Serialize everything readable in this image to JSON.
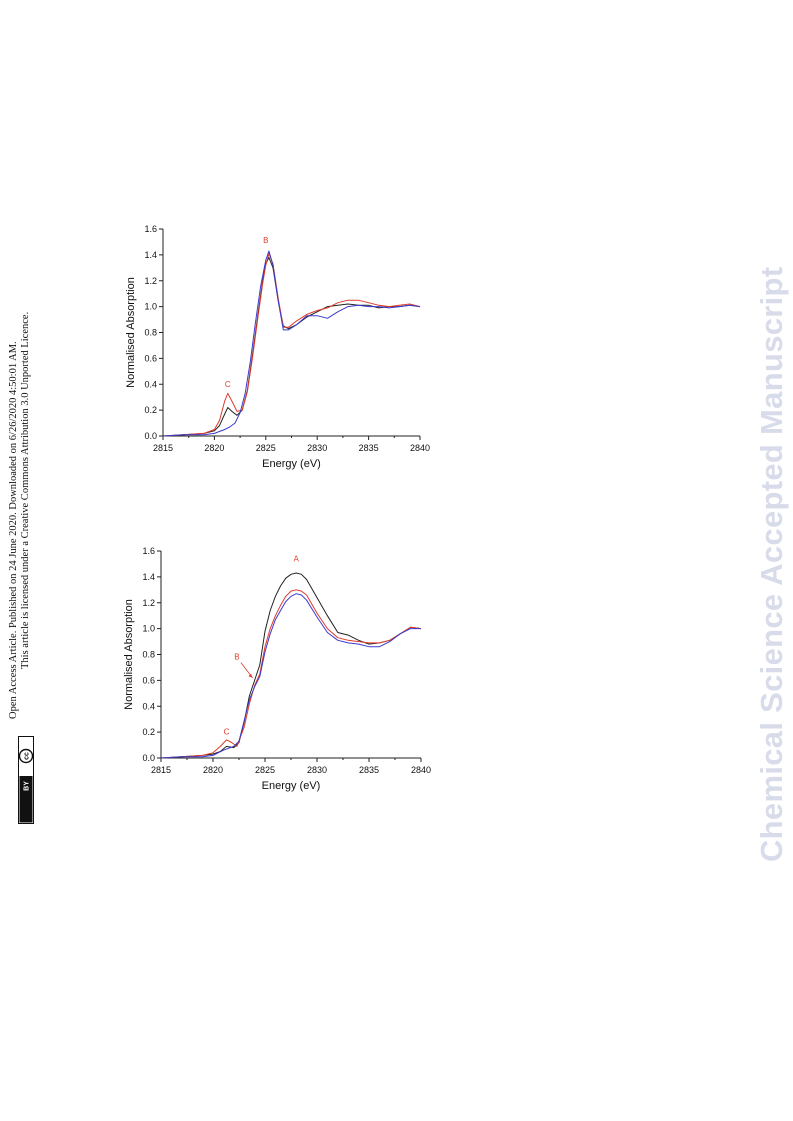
{
  "sidebar": {
    "line1": "Open Access Article. Published on 24 June 2020. Downloaded on 6/26/2020 4:50:01 AM.",
    "line2": "This article is licensed under a Creative Commons Attribution 3.0 Unported Licence.",
    "badge_cc": "cc",
    "badge_by": "BY"
  },
  "watermark": "Chemical Science Accepted Manuscript",
  "colors": {
    "black": "#222222",
    "red": "#e03a2a",
    "blue": "#3a3ad0",
    "label": "#e03a2a"
  },
  "chart_data": [
    {
      "type": "line",
      "title": "",
      "xlabel": "Energy (eV)",
      "ylabel": "Normalised Absorption",
      "xlim": [
        2815,
        2840
      ],
      "ylim": [
        0.0,
        1.6
      ],
      "xticks": [
        "2815",
        "2820",
        "2825",
        "2830",
        "2835",
        "2840"
      ],
      "yticks": [
        "0.0",
        "0.2",
        "0.4",
        "0.6",
        "0.8",
        "1.0",
        "1.2",
        "1.4",
        "1.6"
      ],
      "annotations": [
        {
          "text": "B",
          "x": 2825,
          "y": 1.49
        },
        {
          "text": "C",
          "x": 2821.3,
          "y": 0.38
        }
      ],
      "series": [
        {
          "color": "black",
          "x": [
            2815,
            2817,
            2819,
            2820,
            2820.5,
            2821,
            2821.3,
            2821.7,
            2822.2,
            2822.7,
            2823.2,
            2823.7,
            2824.2,
            2824.7,
            2825.0,
            2825.3,
            2825.7,
            2826.2,
            2826.7,
            2827.2,
            2828,
            2829,
            2830,
            2831,
            2832,
            2833,
            2834,
            2835,
            2836,
            2837,
            2838,
            2839,
            2840
          ],
          "y": [
            0.0,
            0.01,
            0.02,
            0.04,
            0.08,
            0.17,
            0.22,
            0.19,
            0.16,
            0.2,
            0.35,
            0.62,
            0.92,
            1.2,
            1.33,
            1.38,
            1.3,
            1.05,
            0.85,
            0.83,
            0.86,
            0.92,
            0.96,
            1.0,
            1.01,
            1.02,
            1.01,
            1.01,
            0.99,
            1.0,
            1.0,
            1.01,
            1.0
          ]
        },
        {
          "color": "red",
          "x": [
            2815,
            2817,
            2819,
            2820,
            2820.5,
            2821,
            2821.3,
            2821.7,
            2822.2,
            2822.7,
            2823.2,
            2823.7,
            2824.2,
            2824.7,
            2825.0,
            2825.3,
            2825.7,
            2826.2,
            2826.7,
            2827.2,
            2828,
            2829,
            2830,
            2831,
            2832,
            2833,
            2834,
            2835,
            2836,
            2837,
            2838,
            2839,
            2840
          ],
          "y": [
            0.0,
            0.01,
            0.02,
            0.05,
            0.12,
            0.27,
            0.33,
            0.27,
            0.19,
            0.2,
            0.34,
            0.6,
            0.9,
            1.18,
            1.32,
            1.41,
            1.33,
            1.07,
            0.84,
            0.84,
            0.89,
            0.94,
            0.97,
            0.99,
            1.03,
            1.05,
            1.05,
            1.03,
            1.01,
            1.0,
            1.01,
            1.02,
            1.0
          ]
        },
        {
          "color": "blue",
          "x": [
            2815,
            2817,
            2819,
            2820,
            2821,
            2821.5,
            2822,
            2822.5,
            2823,
            2823.5,
            2824,
            2824.5,
            2825.0,
            2825.3,
            2825.7,
            2826.2,
            2826.7,
            2827.2,
            2828,
            2829,
            2830,
            2831,
            2832,
            2833,
            2834,
            2835,
            2836,
            2837,
            2838,
            2839,
            2840
          ],
          "y": [
            0.0,
            0.01,
            0.01,
            0.02,
            0.05,
            0.07,
            0.1,
            0.18,
            0.33,
            0.58,
            0.88,
            1.16,
            1.36,
            1.43,
            1.32,
            1.05,
            0.82,
            0.82,
            0.86,
            0.93,
            0.93,
            0.91,
            0.96,
            1.0,
            1.01,
            1.0,
            1.0,
            0.99,
            1.0,
            1.01,
            1.0
          ]
        }
      ]
    },
    {
      "type": "line",
      "title": "",
      "xlabel": "Energy (eV)",
      "ylabel": "Normalised Absorption",
      "xlim": [
        2815,
        2840
      ],
      "ylim": [
        0.0,
        1.6
      ],
      "xticks": [
        "2815",
        "2820",
        "2825",
        "2830",
        "2835",
        "2840"
      ],
      "yticks": [
        "0.0",
        "0.2",
        "0.4",
        "0.6",
        "0.8",
        "1.0",
        "1.2",
        "1.4",
        "1.6"
      ],
      "annotations": [
        {
          "text": "A",
          "x": 2828,
          "y": 1.52
        },
        {
          "text": "B",
          "x": 2822.3,
          "y": 0.76,
          "arrow_to": [
            2823.8,
            0.62
          ]
        },
        {
          "text": "C",
          "x": 2821.3,
          "y": 0.18
        }
      ],
      "series": [
        {
          "color": "black",
          "x": [
            2815,
            2817,
            2819,
            2820,
            2820.7,
            2821.3,
            2822,
            2822.5,
            2823,
            2823.5,
            2824,
            2824.5,
            2825,
            2825.5,
            2826,
            2826.5,
            2827,
            2827.5,
            2828,
            2828.5,
            2829,
            2830,
            2831,
            2832,
            2833,
            2834,
            2835,
            2836,
            2837,
            2838,
            2839,
            2840
          ],
          "y": [
            0.0,
            0.01,
            0.02,
            0.03,
            0.05,
            0.09,
            0.08,
            0.12,
            0.28,
            0.48,
            0.6,
            0.72,
            0.98,
            1.14,
            1.25,
            1.33,
            1.39,
            1.42,
            1.43,
            1.42,
            1.38,
            1.24,
            1.1,
            0.97,
            0.95,
            0.91,
            0.88,
            0.89,
            0.91,
            0.96,
            1.01,
            1.0
          ]
        },
        {
          "color": "red",
          "x": [
            2815,
            2817,
            2819,
            2820,
            2820.7,
            2821.3,
            2821.8,
            2822.3,
            2823,
            2823.5,
            2824,
            2824.5,
            2825,
            2825.5,
            2826,
            2826.5,
            2827,
            2827.5,
            2828,
            2828.5,
            2829,
            2830,
            2831,
            2832,
            2833,
            2834,
            2835,
            2836,
            2837,
            2838,
            2839,
            2840
          ],
          "y": [
            0.0,
            0.01,
            0.02,
            0.04,
            0.09,
            0.14,
            0.12,
            0.09,
            0.24,
            0.42,
            0.56,
            0.65,
            0.86,
            1.0,
            1.1,
            1.18,
            1.25,
            1.29,
            1.3,
            1.29,
            1.26,
            1.12,
            1.0,
            0.93,
            0.91,
            0.9,
            0.89,
            0.89,
            0.91,
            0.96,
            1.01,
            1.0
          ]
        },
        {
          "color": "blue",
          "x": [
            2815,
            2817,
            2819,
            2820,
            2821,
            2822,
            2822.5,
            2823,
            2823.5,
            2824,
            2824.5,
            2825,
            2825.5,
            2826,
            2826.5,
            2827,
            2827.5,
            2828,
            2828.5,
            2829,
            2830,
            2831,
            2832,
            2833,
            2834,
            2835,
            2836,
            2837,
            2838,
            2839,
            2840
          ],
          "y": [
            0.0,
            0.01,
            0.01,
            0.02,
            0.06,
            0.09,
            0.13,
            0.29,
            0.45,
            0.55,
            0.63,
            0.82,
            0.96,
            1.07,
            1.14,
            1.21,
            1.25,
            1.27,
            1.26,
            1.22,
            1.09,
            0.97,
            0.91,
            0.89,
            0.88,
            0.86,
            0.86,
            0.9,
            0.96,
            1.0,
            1.0
          ]
        }
      ]
    }
  ]
}
